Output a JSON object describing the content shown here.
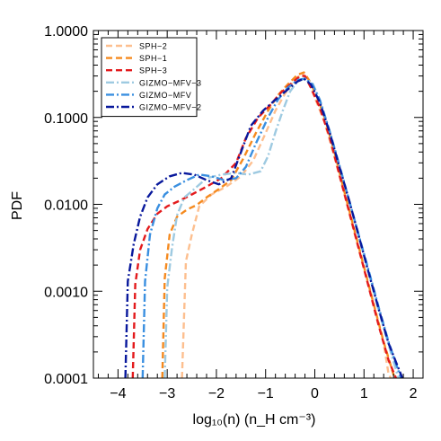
{
  "chart_data": {
    "type": "line",
    "xlabel": "log₁₀(n) (n_H cm⁻³)",
    "ylabel": "PDF",
    "xlim": [
      -4.5,
      2.2
    ],
    "ylim": [
      0.0001,
      1.0
    ],
    "y_scale": "log",
    "x_ticks": [
      -4,
      -3,
      -2,
      -1,
      0,
      1,
      2
    ],
    "x_tick_labels": [
      "−4",
      "−3",
      "−2",
      "−1",
      "0",
      "1",
      "2"
    ],
    "y_ticks": [
      0.0001,
      0.001,
      0.01,
      0.1,
      1.0
    ],
    "y_tick_labels": [
      "0.0001",
      "0.0010",
      "0.0100",
      "0.1000",
      "1.0000"
    ],
    "legend_position": "top-left",
    "series": [
      {
        "name": "SPH−2",
        "color": "#fdbf8f",
        "dash": "dashed",
        "points": [
          [
            -2.7,
            0.0001
          ],
          [
            -2.62,
            0.0022
          ],
          [
            -2.5,
            0.0045
          ],
          [
            -2.35,
            0.0095
          ],
          [
            -2.1,
            0.013
          ],
          [
            -1.8,
            0.016
          ],
          [
            -1.5,
            0.021
          ],
          [
            -1.25,
            0.032
          ],
          [
            -1.0,
            0.066
          ],
          [
            -0.8,
            0.12
          ],
          [
            -0.6,
            0.19
          ],
          [
            -0.45,
            0.25
          ],
          [
            -0.35,
            0.29
          ],
          [
            -0.25,
            0.32
          ],
          [
            -0.1,
            0.24
          ],
          [
            0.0,
            0.17
          ],
          [
            0.2,
            0.088
          ],
          [
            0.4,
            0.035
          ],
          [
            0.6,
            0.013
          ],
          [
            0.8,
            0.0048
          ],
          [
            1.0,
            0.0018
          ],
          [
            1.2,
            0.0007
          ],
          [
            1.3,
            0.00042
          ],
          [
            1.4,
            0.00025
          ],
          [
            1.5,
            0.00011
          ],
          [
            1.55,
            0.0001
          ]
        ]
      },
      {
        "name": "SPH−1",
        "color": "#f58a1f",
        "dash": "dashed",
        "points": [
          [
            -3.1,
            0.0001
          ],
          [
            -3.05,
            0.0014
          ],
          [
            -2.95,
            0.0045
          ],
          [
            -2.8,
            0.0072
          ],
          [
            -2.6,
            0.0087
          ],
          [
            -2.4,
            0.0098
          ],
          [
            -2.2,
            0.012
          ],
          [
            -1.95,
            0.015
          ],
          [
            -1.7,
            0.019
          ],
          [
            -1.45,
            0.034
          ],
          [
            -1.2,
            0.066
          ],
          [
            -0.95,
            0.12
          ],
          [
            -0.75,
            0.18
          ],
          [
            -0.55,
            0.24
          ],
          [
            -0.35,
            0.31
          ],
          [
            -0.22,
            0.33
          ],
          [
            -0.1,
            0.26
          ],
          [
            0.05,
            0.17
          ],
          [
            0.2,
            0.1
          ],
          [
            0.4,
            0.04
          ],
          [
            0.6,
            0.014
          ],
          [
            0.8,
            0.0052
          ],
          [
            1.0,
            0.0019
          ],
          [
            1.2,
            0.0007
          ],
          [
            1.4,
            0.00026
          ],
          [
            1.6,
            0.00011
          ],
          [
            1.65,
            0.0001
          ]
        ]
      },
      {
        "name": "SPH−3",
        "color": "#e31a1c",
        "dash": "dashed",
        "points": [
          [
            -3.7,
            0.0001
          ],
          [
            -3.65,
            0.0012
          ],
          [
            -3.55,
            0.003
          ],
          [
            -3.4,
            0.0052
          ],
          [
            -3.2,
            0.0078
          ],
          [
            -3.0,
            0.0095
          ],
          [
            -2.75,
            0.011
          ],
          [
            -2.5,
            0.013
          ],
          [
            -2.2,
            0.016
          ],
          [
            -1.9,
            0.02
          ],
          [
            -1.6,
            0.03
          ],
          [
            -1.4,
            0.058
          ],
          [
            -1.15,
            0.1
          ],
          [
            -0.9,
            0.14
          ],
          [
            -0.7,
            0.19
          ],
          [
            -0.5,
            0.24
          ],
          [
            -0.3,
            0.3
          ],
          [
            -0.2,
            0.3
          ],
          [
            -0.08,
            0.22
          ],
          [
            0.1,
            0.13
          ],
          [
            0.3,
            0.06
          ],
          [
            0.5,
            0.022
          ],
          [
            0.7,
            0.0082
          ],
          [
            0.9,
            0.003
          ],
          [
            1.1,
            0.0011
          ],
          [
            1.3,
            0.0004
          ],
          [
            1.5,
            0.00016
          ],
          [
            1.65,
            0.0001
          ]
        ]
      },
      {
        "name": "GIZMO−MFV−3",
        "color": "#9ecae1",
        "dash": "dashdot",
        "points": [
          [
            -3.05,
            0.0001
          ],
          [
            -3.0,
            0.0011
          ],
          [
            -2.9,
            0.0032
          ],
          [
            -2.8,
            0.0075
          ],
          [
            -2.65,
            0.012
          ],
          [
            -2.45,
            0.015
          ],
          [
            -2.2,
            0.02
          ],
          [
            -1.9,
            0.022
          ],
          [
            -1.6,
            0.023
          ],
          [
            -1.35,
            0.022
          ],
          [
            -1.1,
            0.024
          ],
          [
            -0.95,
            0.036
          ],
          [
            -0.8,
            0.068
          ],
          [
            -0.65,
            0.12
          ],
          [
            -0.5,
            0.2
          ],
          [
            -0.35,
            0.26
          ],
          [
            -0.2,
            0.28
          ],
          [
            -0.05,
            0.25
          ],
          [
            0.1,
            0.16
          ],
          [
            0.3,
            0.07
          ],
          [
            0.5,
            0.028
          ],
          [
            0.7,
            0.011
          ],
          [
            0.9,
            0.0041
          ],
          [
            1.1,
            0.0016
          ],
          [
            1.3,
            0.0006
          ],
          [
            1.5,
            0.00024
          ],
          [
            1.7,
            0.0001
          ]
        ]
      },
      {
        "name": "GIZMO−MFV",
        "color": "#3a8fe0",
        "dash": "dashdot",
        "points": [
          [
            -3.5,
            0.0001
          ],
          [
            -3.45,
            0.0013
          ],
          [
            -3.35,
            0.0045
          ],
          [
            -3.2,
            0.009
          ],
          [
            -3.05,
            0.013
          ],
          [
            -2.85,
            0.016
          ],
          [
            -2.6,
            0.019
          ],
          [
            -2.35,
            0.022
          ],
          [
            -2.1,
            0.021
          ],
          [
            -1.85,
            0.019
          ],
          [
            -1.6,
            0.02
          ],
          [
            -1.4,
            0.027
          ],
          [
            -1.2,
            0.05
          ],
          [
            -0.95,
            0.1
          ],
          [
            -0.75,
            0.16
          ],
          [
            -0.55,
            0.22
          ],
          [
            -0.35,
            0.27
          ],
          [
            -0.2,
            0.28
          ],
          [
            -0.05,
            0.24
          ],
          [
            0.1,
            0.16
          ],
          [
            0.3,
            0.07
          ],
          [
            0.5,
            0.028
          ],
          [
            0.7,
            0.011
          ],
          [
            0.9,
            0.0043
          ],
          [
            1.1,
            0.0017
          ],
          [
            1.3,
            0.00065
          ],
          [
            1.5,
            0.00026
          ],
          [
            1.75,
            0.0001
          ]
        ]
      },
      {
        "name": "GIZMO−MFV−2",
        "color": "#08189c",
        "dash": "dashdot",
        "points": [
          [
            -3.85,
            0.0001
          ],
          [
            -3.8,
            0.0013
          ],
          [
            -3.68,
            0.0035
          ],
          [
            -3.55,
            0.0072
          ],
          [
            -3.4,
            0.012
          ],
          [
            -3.2,
            0.017
          ],
          [
            -2.95,
            0.021
          ],
          [
            -2.7,
            0.023
          ],
          [
            -2.45,
            0.022
          ],
          [
            -2.2,
            0.019
          ],
          [
            -1.95,
            0.017
          ],
          [
            -1.7,
            0.02
          ],
          [
            -1.5,
            0.04
          ],
          [
            -1.3,
            0.08
          ],
          [
            -1.05,
            0.12
          ],
          [
            -0.8,
            0.16
          ],
          [
            -0.55,
            0.21
          ],
          [
            -0.35,
            0.26
          ],
          [
            -0.22,
            0.28
          ],
          [
            -0.08,
            0.24
          ],
          [
            0.1,
            0.15
          ],
          [
            0.3,
            0.068
          ],
          [
            0.5,
            0.027
          ],
          [
            0.7,
            0.011
          ],
          [
            0.9,
            0.0042
          ],
          [
            1.1,
            0.0016
          ],
          [
            1.3,
            0.00062
          ],
          [
            1.5,
            0.00025
          ],
          [
            1.78,
            0.0001
          ]
        ]
      }
    ]
  }
}
